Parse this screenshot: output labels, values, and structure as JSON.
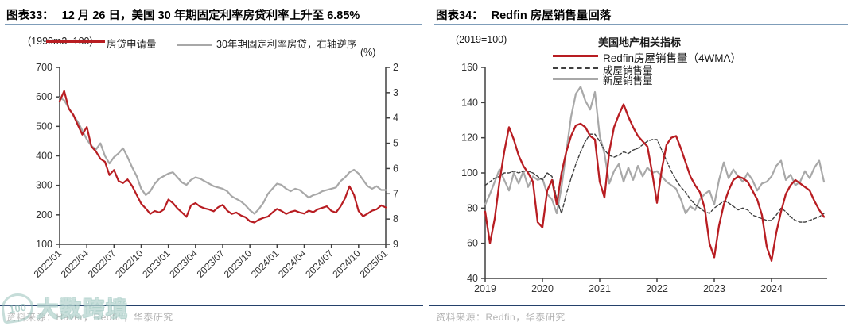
{
  "colors": {
    "red": "#b81d22",
    "gray_line": "#a8a8a8",
    "dashed_line": "#3f3f3f",
    "axis": "#404040",
    "title_underline": "#7f9db9",
    "divider": "#24416b",
    "source_text": "#b3b3b3"
  },
  "left_chart": {
    "figure_label": "图表33：",
    "title": "12 月 26 日，美国 30 年期固定利率房贷利率上升至 6.85%",
    "y_left_unit": "(1990m3=100)",
    "y_right_unit": "(%)",
    "legend": [
      {
        "label": "房贷申请量"
      },
      {
        "label": "30年期固定利率房贷，右轴逆序"
      }
    ],
    "source": "资料来源：Haver，Redfin，华泰研究"
  },
  "right_chart": {
    "figure_label": "图表34：",
    "title": "Redfin 房屋销售量回落",
    "y_unit": "(2019=100)",
    "inner_title": "美国地产相关指标",
    "legend": [
      {
        "label": "Redfin房屋销售量（4WMA）"
      },
      {
        "label": "成屋销售量"
      },
      {
        "label": "新屋销售量"
      }
    ],
    "source": "资料来源：Redfin，华泰研究"
  },
  "watermark": {
    "logo_text": "100",
    "text": "大数跨境"
  },
  "chart_data": [
    {
      "type": "line",
      "title": "12月26日，美国30年期固定利率房贷利率上升至6.85%",
      "x_tick_labels": [
        "2022/01",
        "2022/04",
        "2022/07",
        "2022/10",
        "2023/01",
        "2023/04",
        "2023/07",
        "2023/10",
        "2024/01",
        "2024/04",
        "2024/07",
        "2024/10",
        "2025/01"
      ],
      "x_range_note": "semi-monthly points 2022/01 - 2025/01",
      "y_left": {
        "label": "(1990m3=100)",
        "min": 100,
        "max": 700,
        "ticks": [
          700,
          600,
          500,
          400,
          300,
          200,
          100
        ]
      },
      "y_right": {
        "label": "(%)",
        "min": 2,
        "max": 9,
        "inverted": true,
        "ticks": [
          2,
          3,
          4,
          5,
          6,
          7,
          8,
          9
        ]
      },
      "grid": false,
      "series": [
        {
          "name": "房贷申请量",
          "axis": "left",
          "color": "#a8a8a8-placeholder-overridden",
          "values": []
        },
        {
          "name": "30年期固定利率房贷，右轴逆序",
          "axis": "right",
          "values": []
        }
      ],
      "apps_values": [
        585,
        620,
        560,
        540,
        505,
        472,
        498,
        432,
        415,
        390,
        380,
        335,
        352,
        315,
        308,
        320,
        298,
        268,
        238,
        222,
        203,
        213,
        208,
        218,
        252,
        240,
        222,
        208,
        193,
        232,
        240,
        228,
        222,
        218,
        212,
        226,
        234,
        214,
        203,
        208,
        198,
        192,
        178,
        174,
        184,
        190,
        194,
        208,
        220,
        213,
        203,
        210,
        214,
        208,
        204,
        214,
        209,
        219,
        224,
        229,
        213,
        208,
        228,
        256,
        297,
        268,
        213,
        195,
        204,
        214,
        219,
        232,
        225
      ],
      "rate_values": [
        3.2,
        3.3,
        3.6,
        3.9,
        4.15,
        4.5,
        4.85,
        5.1,
        5.25,
        5.0,
        5.5,
        5.8,
        5.55,
        5.4,
        5.2,
        5.55,
        5.95,
        6.3,
        6.8,
        7.05,
        6.9,
        6.6,
        6.4,
        6.3,
        6.2,
        6.15,
        6.35,
        6.55,
        6.65,
        6.45,
        6.35,
        6.4,
        6.5,
        6.6,
        6.7,
        6.75,
        6.8,
        6.9,
        7.1,
        7.2,
        7.3,
        7.45,
        7.65,
        7.79,
        7.6,
        7.35,
        7.0,
        6.8,
        6.6,
        6.65,
        6.8,
        6.9,
        6.8,
        6.85,
        7.0,
        7.15,
        7.05,
        7.0,
        6.9,
        6.85,
        6.8,
        6.75,
        6.5,
        6.35,
        6.15,
        6.05,
        6.2,
        6.45,
        6.7,
        6.8,
        6.7,
        6.85,
        6.85
      ]
    },
    {
      "type": "line",
      "title": "美国地产相关指标",
      "x_tick_labels": [
        "2019",
        "2020",
        "2021",
        "2022",
        "2023",
        "2024"
      ],
      "x_range_note": "monthly points 2019/01 - 2024/12",
      "y": {
        "label": "(2019=100)",
        "min": 40,
        "max": 160,
        "ticks": [
          160,
          140,
          120,
          100,
          80,
          60,
          40
        ]
      },
      "grid": false,
      "redfin_values": [
        78,
        60,
        74,
        95,
        112,
        126,
        119,
        110,
        104,
        100,
        95,
        72,
        69,
        90,
        96,
        82,
        100,
        112,
        121,
        127,
        128,
        126,
        121,
        119,
        95,
        86,
        112,
        126,
        133,
        139,
        132,
        126,
        121,
        118,
        115,
        100,
        83,
        102,
        116,
        120,
        121,
        114,
        106,
        98,
        93,
        89,
        80,
        60,
        52,
        70,
        82,
        90,
        96,
        98,
        97,
        95,
        90,
        85,
        76,
        58,
        50,
        66,
        78,
        88,
        93,
        96,
        94,
        92,
        90,
        84,
        79,
        75
      ],
      "existing_values": [
        93,
        95,
        97,
        98,
        100,
        100,
        101,
        100,
        101,
        101,
        100,
        98,
        96,
        100,
        98,
        85,
        77,
        88,
        97,
        105,
        112,
        118,
        122,
        122,
        118,
        113,
        110,
        109,
        110,
        112,
        111,
        113,
        114,
        116,
        118,
        119,
        119,
        113,
        107,
        101,
        96,
        92,
        89,
        85,
        82,
        80,
        78,
        77,
        80,
        82,
        84,
        83,
        81,
        79,
        80,
        79,
        76,
        75,
        74,
        73,
        73,
        76,
        80,
        78,
        75,
        73,
        72,
        72,
        73,
        74,
        75,
        77
      ],
      "new_values": [
        82,
        88,
        95,
        102,
        96,
        90,
        100,
        94,
        101,
        92,
        98,
        96,
        97,
        88,
        85,
        77,
        92,
        112,
        132,
        145,
        149,
        141,
        136,
        146,
        121,
        111,
        94,
        101,
        105,
        95,
        103,
        96,
        104,
        98,
        103,
        100,
        101,
        98,
        95,
        93,
        91,
        85,
        77,
        81,
        79,
        85,
        88,
        90,
        82,
        96,
        106,
        97,
        102,
        98,
        95,
        100,
        96,
        90,
        94,
        95,
        98,
        104,
        107,
        96,
        99,
        93,
        95,
        101,
        97,
        103,
        107,
        95
      ]
    }
  ]
}
